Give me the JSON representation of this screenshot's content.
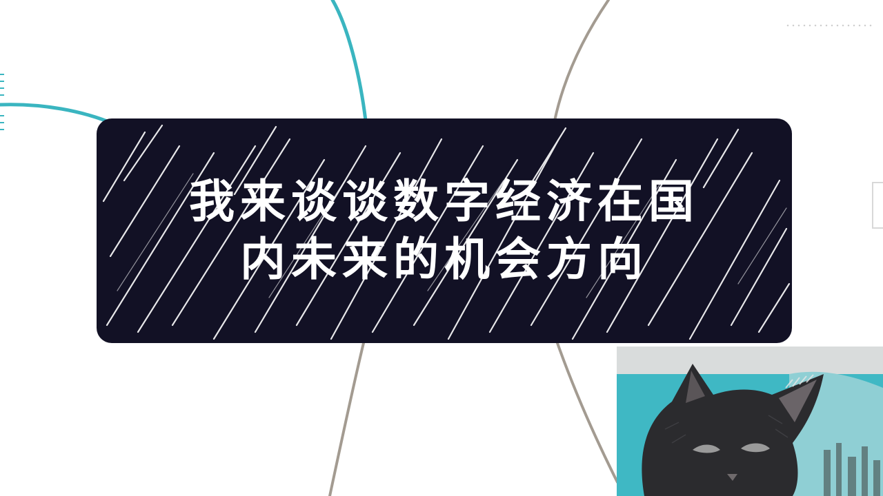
{
  "title": {
    "line1": "我来谈谈数字经济在国",
    "line2": "内未来的机会方向"
  },
  "colors": {
    "card": "#121125",
    "teal_branch": "#3ab5c0",
    "taupe_branch": "#a39b91",
    "text": "#ffffff"
  },
  "icons": {
    "webcam": "cat-face-icon"
  }
}
